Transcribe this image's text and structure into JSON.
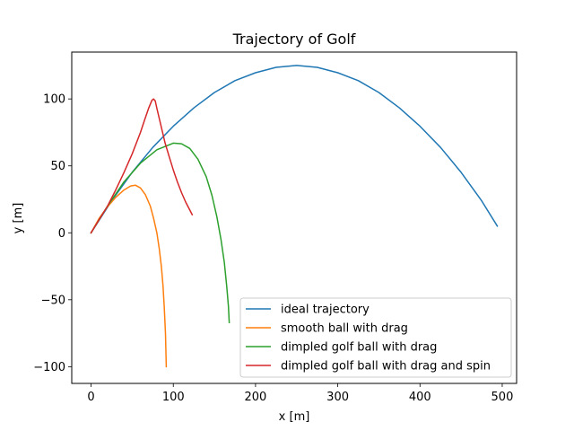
{
  "chart_data": {
    "type": "line",
    "title": "Trajectory of Golf",
    "xlabel": "x [m]",
    "ylabel": "y [m]",
    "xlim": [
      -23.5,
      517.5
    ],
    "ylim": [
      -112.5,
      135
    ],
    "xticks": [
      0,
      100,
      200,
      300,
      400,
      500
    ],
    "yticks": [
      -100,
      -50,
      0,
      50,
      100
    ],
    "xtick_labels": [
      "0",
      "100",
      "200",
      "300",
      "400",
      "500"
    ],
    "ytick_labels": [
      "−100",
      "−50",
      "0",
      "50",
      "100"
    ],
    "grid": false,
    "legend_position": "lower-right",
    "series": [
      {
        "name": "ideal trajectory",
        "color": "#1f77b4",
        "x": [
          0,
          25,
          50,
          75,
          100,
          125,
          150,
          175,
          200,
          225,
          250,
          275,
          300,
          325,
          350,
          375,
          400,
          425,
          450,
          475,
          494
        ],
        "y": [
          0,
          23.9,
          45.2,
          63.8,
          79.6,
          93.3,
          104.8,
          113.7,
          119.6,
          123.6,
          125.0,
          123.6,
          119.6,
          113.7,
          104.8,
          93.3,
          79.6,
          63.8,
          45.2,
          23.9,
          5
        ]
      },
      {
        "name": "smooth ball with drag",
        "color": "#ff7f0e",
        "x": [
          0,
          10,
          20,
          30,
          40,
          48,
          54,
          60,
          66,
          72,
          76,
          80,
          83,
          85.5,
          87.5,
          89,
          90.5,
          91.5
        ],
        "y": [
          0,
          11,
          19.5,
          26.5,
          32,
          35,
          35.5,
          33.5,
          28.5,
          20,
          11,
          0,
          -12,
          -25,
          -40,
          -55,
          -75,
          -100
        ]
      },
      {
        "name": "dimpled golf ball with drag",
        "color": "#2ca02c",
        "x": [
          0,
          20,
          40,
          60,
          80,
          100,
          110,
          120,
          130,
          140,
          147,
          153,
          158,
          162,
          165,
          167,
          168
        ],
        "y": [
          0,
          20,
          38,
          52,
          62,
          67,
          66.5,
          63,
          55,
          42,
          28,
          12,
          -5,
          -22,
          -40,
          -55,
          -67
        ]
      },
      {
        "name": "dimpled golf ball with drag and spin",
        "color": "#d62728",
        "x": [
          0,
          10,
          20,
          30,
          40,
          50,
          60,
          65,
          70,
          74,
          76,
          78,
          80,
          85,
          90,
          95,
          100,
          105,
          110,
          115,
          120,
          123
        ],
        "y": [
          0,
          10,
          20,
          32,
          45,
          59,
          75,
          84,
          93,
          99,
          100,
          98.5,
          93,
          80,
          67,
          57,
          47,
          38,
          30,
          23,
          17,
          13.5
        ]
      }
    ]
  }
}
